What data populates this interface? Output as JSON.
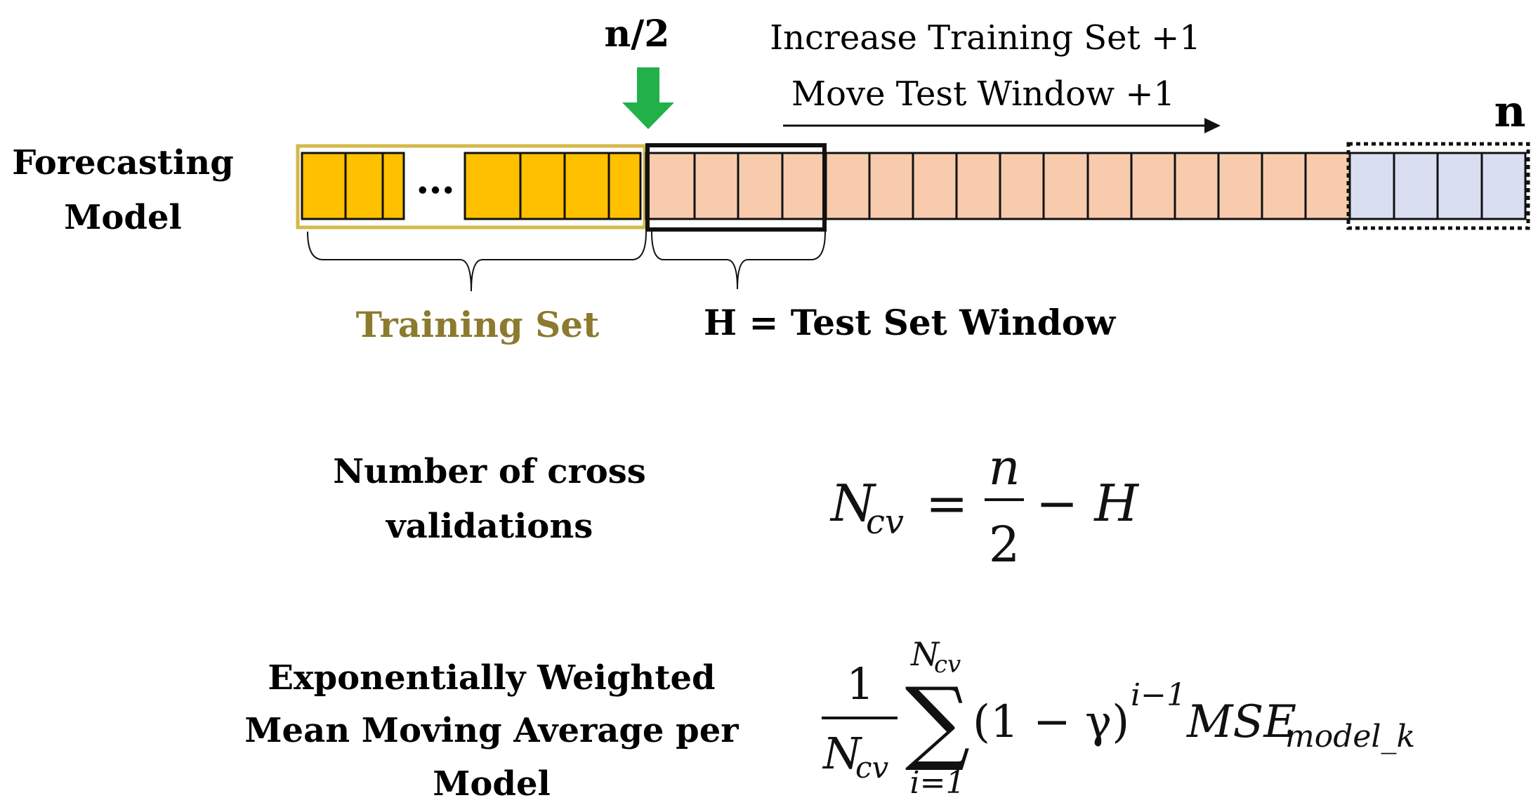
{
  "labels": {
    "model_line1": "Forecasting",
    "model_line2": "Model",
    "half_marker": "n/2",
    "end_marker": "n",
    "ellipsis": "…",
    "step_line1": "Increase Training Set +1",
    "step_line2": "Move Test Window +1",
    "training_set": "Training Set",
    "test_window": "H = Test Set Window",
    "ncv_line1": "Number of cross",
    "ncv_line2": "validations",
    "ewma_line1": "Exponentially Weighted",
    "ewma_line2": "Mean Moving Average per",
    "ewma_line3": "Model"
  },
  "formula_ncv": {
    "lhs": "N",
    "lhs_sub": "cv",
    "eq": "=",
    "num": "n",
    "den": "2",
    "rest": "− H"
  },
  "formula_ewma": {
    "one": "1",
    "den": "N",
    "den_sub": "cv",
    "sigma": "∑",
    "top": "N",
    "top_sub": "cv",
    "bottom": "i=1",
    "body": "(1 − γ)",
    "exp": "i−1",
    "mse": "MSE",
    "mse_sub": "model_k"
  },
  "colors": {
    "training": "#FFC000",
    "training_border": "#D4B84A",
    "test": "#F8CBAD",
    "future": "#D9DFF0",
    "arrow_green": "#22B04B",
    "training_label": "#8C7A2E"
  }
}
